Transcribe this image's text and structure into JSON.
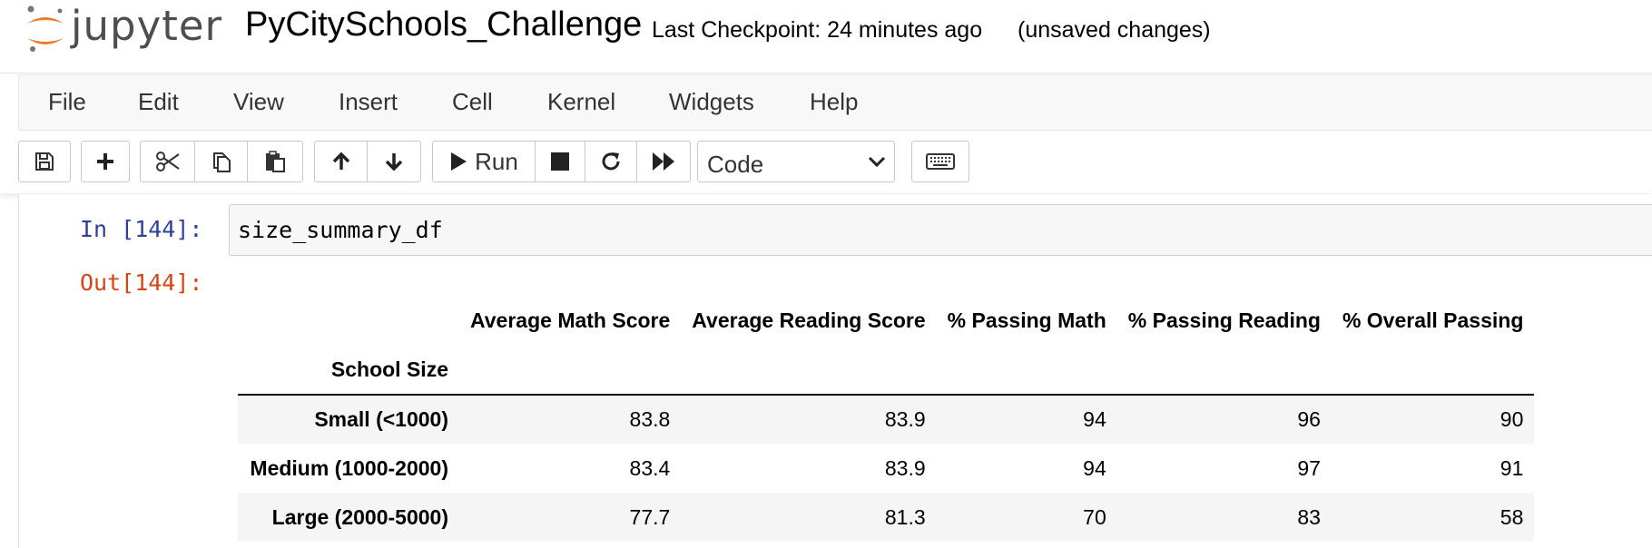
{
  "header": {
    "logo_text": "jupyter",
    "notebook_title": "PyCitySchools_Challenge",
    "checkpoint": "Last Checkpoint: 24 minutes ago",
    "save_status": "(unsaved changes)"
  },
  "menu": {
    "items": [
      "File",
      "Edit",
      "View",
      "Insert",
      "Cell",
      "Kernel",
      "Widgets",
      "Help"
    ]
  },
  "toolbar": {
    "run_label": "Run",
    "cell_type": "Code",
    "icons": [
      "save-icon",
      "plus-icon",
      "scissors-icon",
      "copy-icon",
      "paste-icon",
      "arrow-up-icon",
      "arrow-down-icon",
      "play-icon",
      "stop-icon",
      "restart-icon",
      "fast-forward-icon",
      "keyboard-icon"
    ]
  },
  "cell": {
    "in_prompt": "In [144]:",
    "code": "size_summary_df",
    "out_prompt": "Out[144]:"
  },
  "dataframe": {
    "columns": [
      "Average Math Score",
      "Average Reading Score",
      "% Passing Math",
      "% Passing Reading",
      "% Overall Passing"
    ],
    "index_name": "School Size",
    "rows": [
      {
        "index": "Small (<1000)",
        "values": [
          "83.8",
          "83.9",
          "94",
          "96",
          "90"
        ]
      },
      {
        "index": "Medium (1000-2000)",
        "values": [
          "83.4",
          "83.9",
          "94",
          "97",
          "91"
        ]
      },
      {
        "index": "Large (2000-5000)",
        "values": [
          "77.7",
          "81.3",
          "70",
          "83",
          "58"
        ]
      }
    ]
  },
  "colors": {
    "in_prompt": "#303f9f",
    "out_prompt": "#d84315",
    "logo_orange": "#f37626"
  }
}
